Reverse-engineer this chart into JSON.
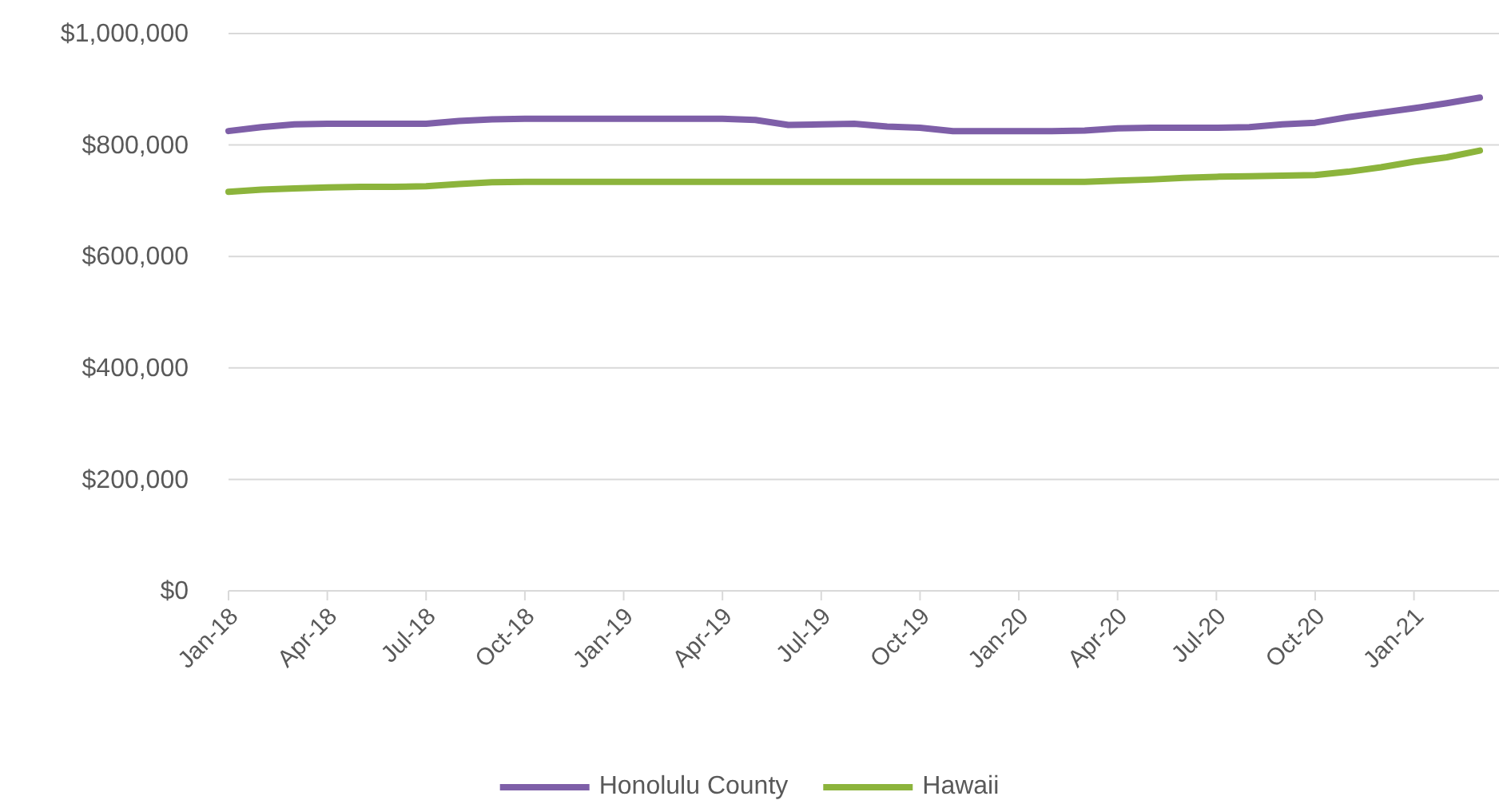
{
  "chart_data": {
    "type": "line",
    "categories": [
      "Jan-18",
      null,
      null,
      "Apr-18",
      null,
      null,
      "Jul-18",
      null,
      null,
      "Oct-18",
      null,
      null,
      "Jan-19",
      null,
      null,
      "Apr-19",
      null,
      null,
      "Jul-19",
      null,
      null,
      "Oct-19",
      null,
      null,
      "Jan-20",
      null,
      null,
      "Apr-20",
      null,
      null,
      "Jul-20",
      null,
      null,
      "Oct-20",
      null,
      null,
      "Jan-21",
      null,
      null
    ],
    "series": [
      {
        "name": "Honolulu County",
        "color": "#7e5fa8",
        "values": [
          825000,
          832000,
          837000,
          838000,
          838000,
          838000,
          838000,
          843000,
          846000,
          847000,
          847000,
          847000,
          847000,
          847000,
          847000,
          847000,
          845000,
          836000,
          837000,
          838000,
          833000,
          831000,
          825000,
          825000,
          825000,
          825000,
          826000,
          830000,
          831000,
          831000,
          831000,
          832000,
          837000,
          840000,
          850000,
          858000,
          866000,
          875000,
          885000
        ]
      },
      {
        "name": "Hawaii",
        "color": "#8cb43c",
        "values": [
          716000,
          720000,
          722000,
          724000,
          725000,
          725000,
          726000,
          730000,
          733000,
          734000,
          734000,
          734000,
          734000,
          734000,
          734000,
          734000,
          734000,
          734000,
          734000,
          734000,
          734000,
          734000,
          734000,
          734000,
          734000,
          734000,
          734000,
          736000,
          738000,
          741000,
          743000,
          744000,
          745000,
          746000,
          752000,
          760000,
          770000,
          778000,
          790000
        ]
      }
    ],
    "ylim": [
      0,
      1000000
    ],
    "yticks": [
      {
        "value": 0,
        "label": "$0"
      },
      {
        "value": 200000,
        "label": "$200,000"
      },
      {
        "value": 400000,
        "label": "$400,000"
      },
      {
        "value": 600000,
        "label": "$600,000"
      },
      {
        "value": 800000,
        "label": "$800,000"
      },
      {
        "value": 1000000,
        "label": "$1,000,000"
      }
    ],
    "grid": "y",
    "legend": "bottom",
    "marker": "none",
    "line_style": "solid"
  }
}
